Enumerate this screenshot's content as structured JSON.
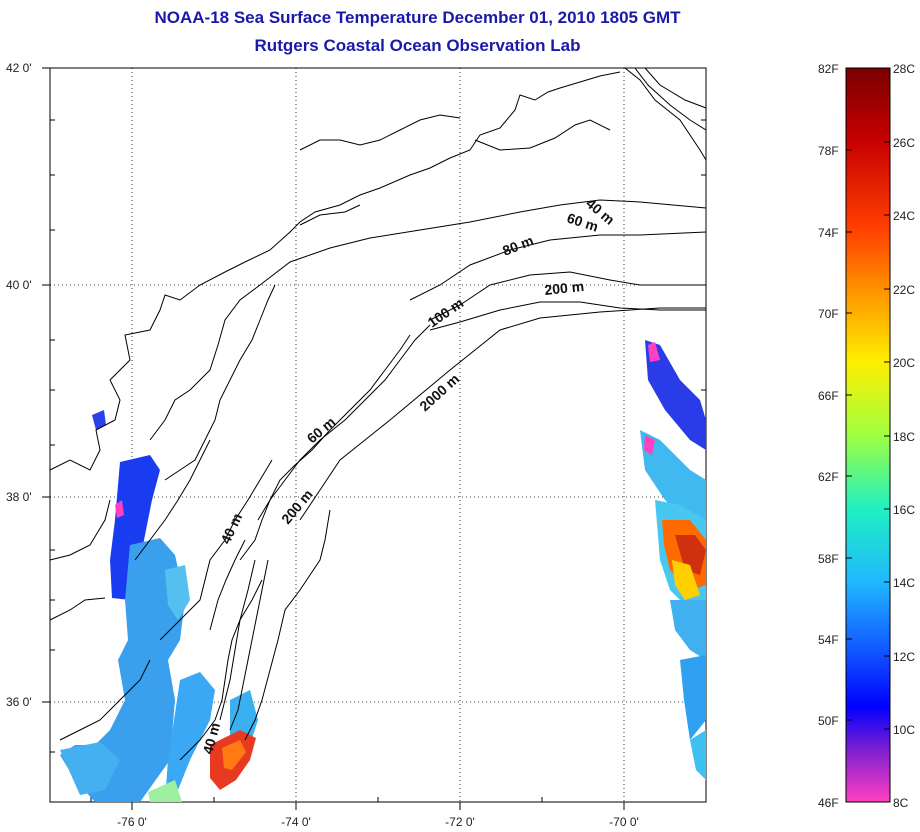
{
  "title": {
    "line1": "NOAA-18 Sea Surface Temperature December 01, 2010 1805 GMT",
    "line2": "Rutgers Coastal Ocean Observation Lab"
  },
  "map": {
    "lat_labels": [
      "42 0'",
      "40 0'",
      "38 0'",
      "36 0'"
    ],
    "lon_labels": [
      "-76 0'",
      "-74 0'",
      "-72 0'",
      "-70 0'"
    ],
    "isobath_labels": [
      "40 m",
      "60 m",
      "80 m",
      "200 m",
      "100 m",
      "2000 m",
      "60 m",
      "40 m",
      "200 m",
      "40 m"
    ],
    "grid": true
  },
  "colorbar": {
    "f_labels": [
      "82F",
      "78F",
      "74F",
      "70F",
      "66F",
      "62F",
      "58F",
      "54F",
      "50F",
      "46F"
    ],
    "c_labels": [
      "28C",
      "26C",
      "24C",
      "22C",
      "20C",
      "18C",
      "16C",
      "14C",
      "12C",
      "10C",
      "8C"
    ],
    "colors": [
      "#7a0000",
      "#d01010",
      "#ff5a00",
      "#ffc000",
      "#e8ff20",
      "#40f080",
      "#20e0e0",
      "#40a0ff",
      "#0000ff",
      "#8020c0",
      "#ff40c0"
    ]
  }
}
